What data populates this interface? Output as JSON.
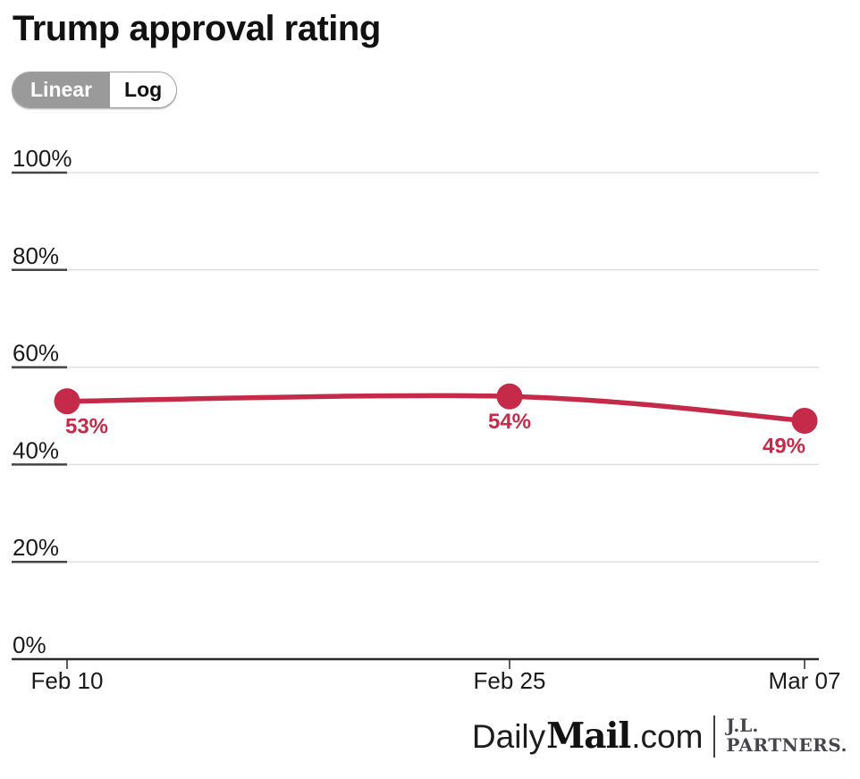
{
  "chart_data": {
    "type": "line",
    "title": "Trump approval rating",
    "x": [
      "Feb 10",
      "Feb 25",
      "Mar 07"
    ],
    "x_days": [
      0,
      15,
      25
    ],
    "series": [
      {
        "name": "Trump approval rating",
        "values": [
          53,
          54,
          49
        ]
      }
    ],
    "point_labels": [
      "53%",
      "54%",
      "49%"
    ],
    "y_ticks": [
      0,
      20,
      40,
      60,
      80,
      100
    ],
    "y_tick_suffix": "%",
    "ylim": [
      0,
      100
    ],
    "xlabel": "",
    "ylabel": "",
    "grid": true,
    "legend": false
  },
  "scale_toggle": {
    "linear_label": "Linear",
    "log_label": "Log",
    "selected": "Linear"
  },
  "colors": {
    "accent": "#c52b49",
    "grid_light": "#dfdfdf",
    "grid_dark": "#454545",
    "axis_dark": "#2b2b2b",
    "tick_text": "#1a1a1a",
    "toggle_selected_bg": "#9a9a9a"
  },
  "footer": {
    "daily": "Daily",
    "mail": "Mail",
    "com": ".com",
    "partner_top": "J.L.",
    "partner_bottom": "PARTNERS."
  }
}
